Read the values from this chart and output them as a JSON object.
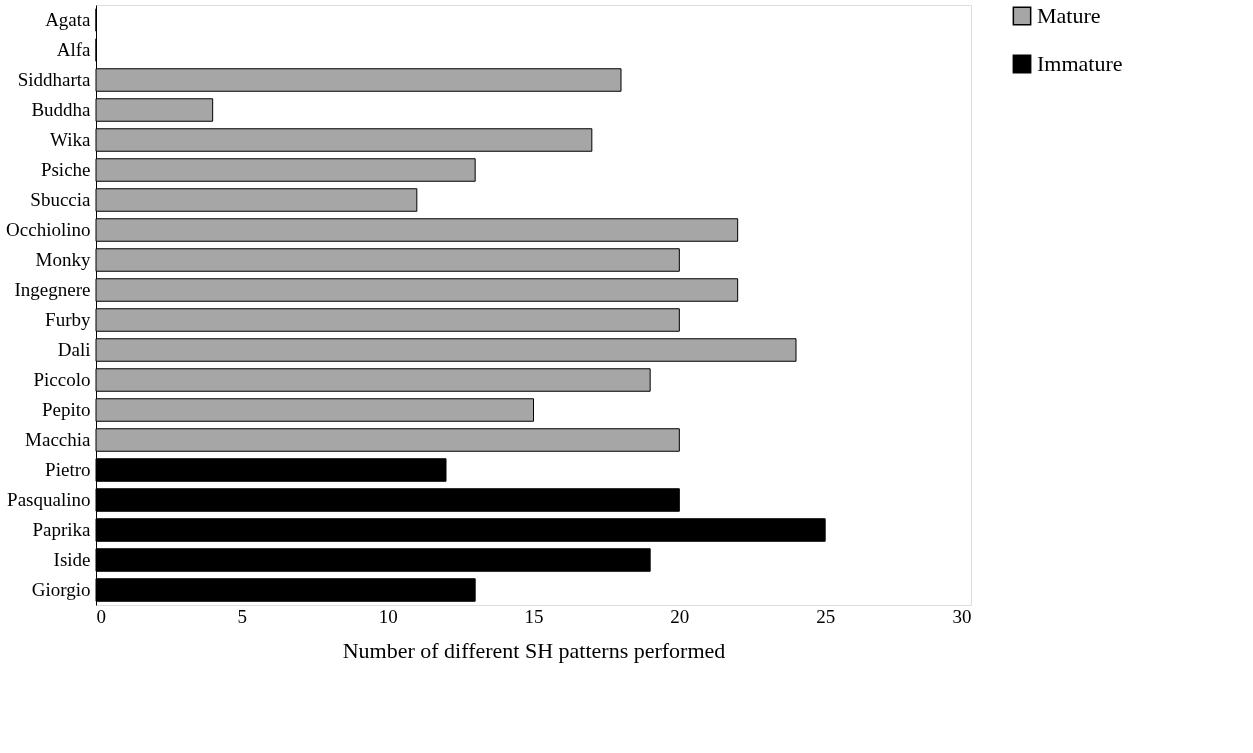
{
  "chart_data": {
    "type": "bar",
    "orientation": "horizontal",
    "xlabel": "Number of different SH patterns performed",
    "categories": [
      "Agata",
      "Alfa",
      "Siddharta",
      "Buddha",
      "Wika",
      "Psiche",
      "Sbuccia",
      "Occhiolino",
      "Monky",
      "Ingegnere",
      "Furby",
      "Dali",
      "Piccolo",
      "Pepito",
      "Macchia",
      "Pietro",
      "Pasqualino",
      "Paprika",
      "Iside",
      "Giorgio"
    ],
    "series": [
      {
        "name": "Mature",
        "color": "#a6a6a6",
        "values": [
          0,
          0,
          18,
          4,
          17,
          13,
          11,
          22,
          20,
          22,
          20,
          24,
          19,
          15,
          20,
          null,
          null,
          null,
          null,
          null
        ]
      },
      {
        "name": "Immature",
        "color": "#000000",
        "values": [
          null,
          null,
          null,
          null,
          null,
          null,
          null,
          null,
          null,
          null,
          null,
          null,
          null,
          null,
          null,
          12,
          20,
          25,
          19,
          13
        ]
      }
    ],
    "xlim": [
      0,
      30
    ],
    "xticks": [
      0,
      5,
      10,
      15,
      20,
      25,
      30
    ],
    "grid": false,
    "legend": "right"
  }
}
